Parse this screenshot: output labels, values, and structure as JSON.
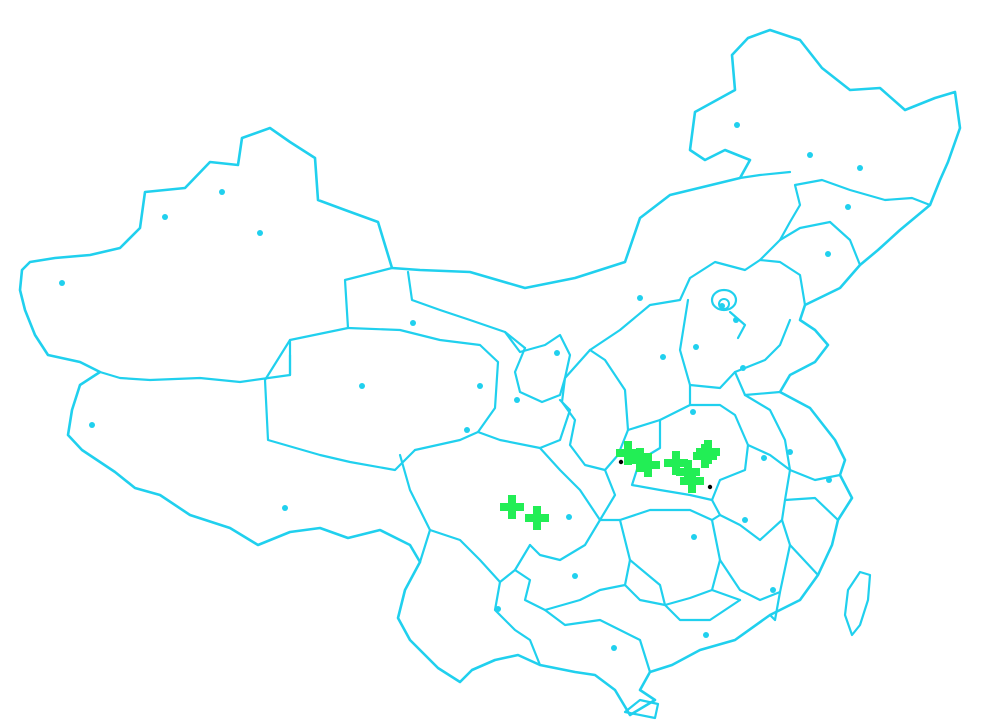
{
  "map": {
    "style": {
      "border_color": "#20d0ee",
      "capital_dot_color": "#20d0ee",
      "marker_color": "#22ee55",
      "city_dot_color": "#000000",
      "background": "#ffffff"
    },
    "marker_icon": "plus-marker-icon",
    "capital_icon": "capital-dot-icon",
    "marker_count": 10
  }
}
